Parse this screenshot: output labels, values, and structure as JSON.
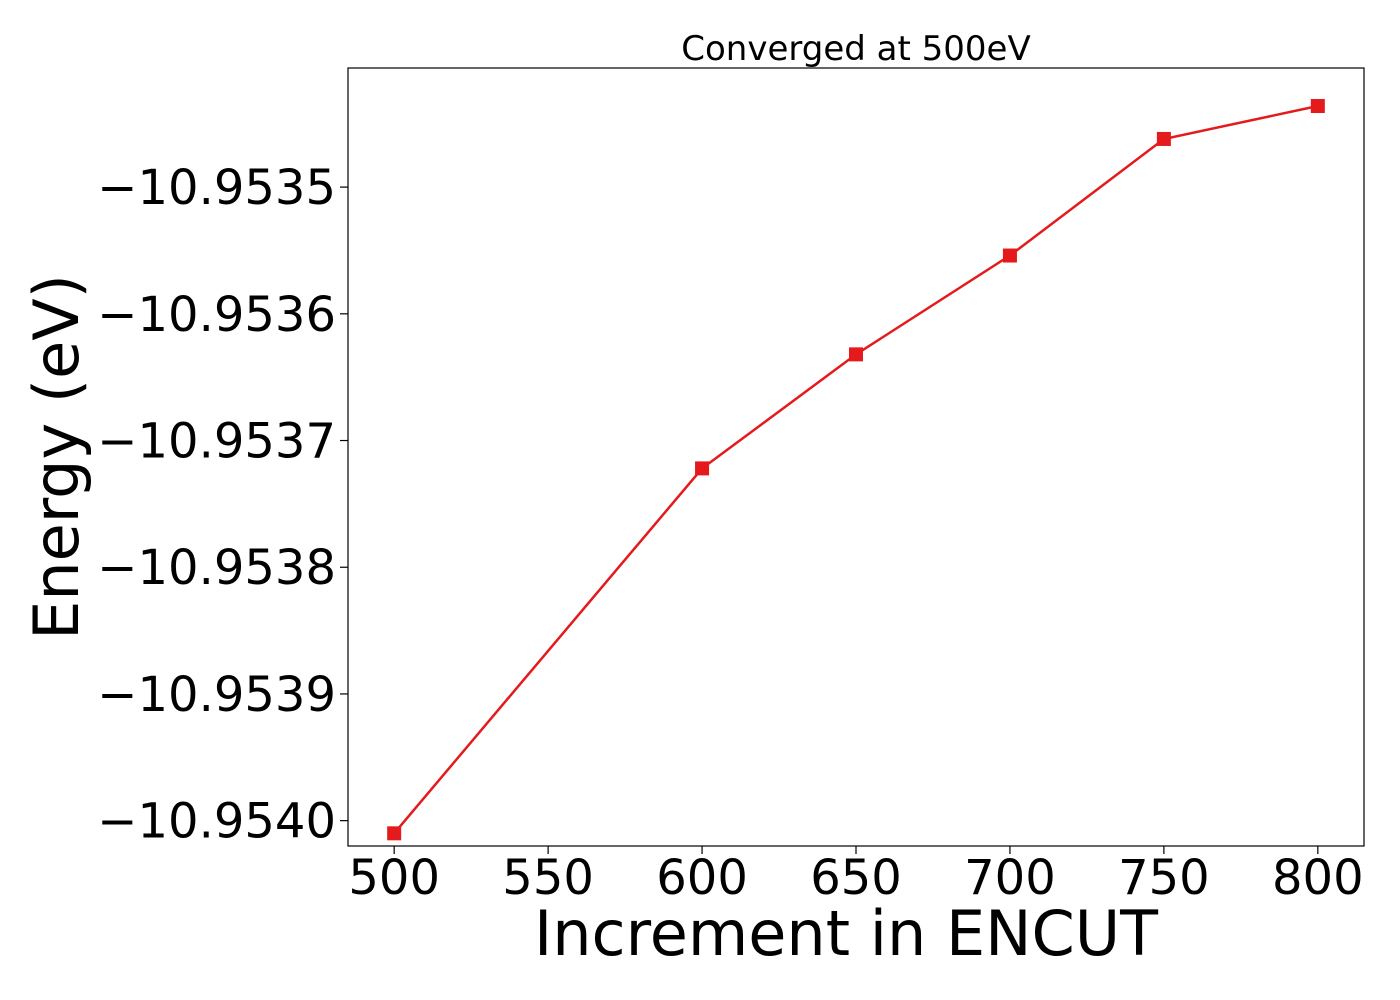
{
  "chart_data": {
    "type": "line",
    "title": "Converged at 500eV",
    "xlabel": "Increment in ENCUT",
    "ylabel": "Energy (eV)",
    "x": [
      500,
      600,
      650,
      700,
      750,
      800
    ],
    "series": [
      {
        "values": [
          -10.95401,
          -10.953722,
          -10.953632,
          -10.953554,
          -10.953462,
          -10.953436
        ],
        "color": "#e41a1c",
        "marker": "square"
      }
    ],
    "xticks": [
      500,
      550,
      600,
      650,
      700,
      750,
      800
    ],
    "xtick_labels": [
      "500",
      "550",
      "600",
      "650",
      "700",
      "750",
      "800"
    ],
    "yticks": [
      -10.954,
      -10.9539,
      -10.9538,
      -10.9537,
      -10.9536,
      -10.9535
    ],
    "ytick_labels": [
      "−10.9540",
      "−10.9539",
      "−10.9538",
      "−10.9537",
      "−10.9536",
      "−10.9535"
    ],
    "xlim": [
      485,
      815
    ],
    "ylim": [
      -10.95402,
      -10.953406
    ],
    "grid": false,
    "legend": false
  }
}
